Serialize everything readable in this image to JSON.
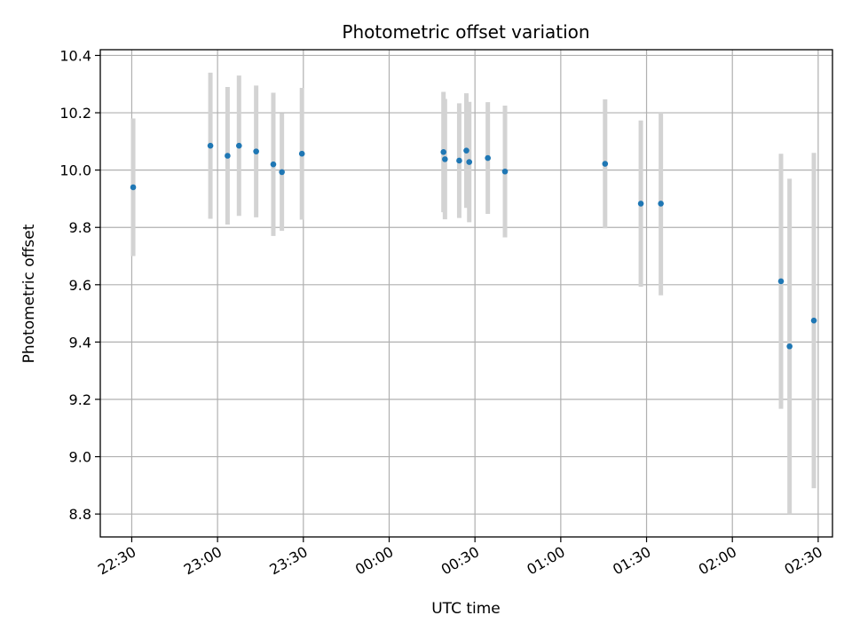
{
  "chart_data": {
    "type": "scatter",
    "title": "Photometric offset variation",
    "xlabel": "UTC time",
    "ylabel": "Photometric offset",
    "x_unit": "UTC time (HH:MM)",
    "xlim": [
      "22:19",
      "02:35"
    ],
    "ylim": [
      8.72,
      10.42
    ],
    "grid": true,
    "x_ticks": [
      "22:30",
      "23:00",
      "23:30",
      "00:00",
      "00:30",
      "01:00",
      "01:30",
      "02:00",
      "02:30"
    ],
    "y_ticks": [
      "8.8",
      "9.0",
      "9.2",
      "9.4",
      "9.6",
      "9.8",
      "10.0",
      "10.2",
      "10.4"
    ],
    "colors": {
      "marker": "#1f77b4",
      "errorbar": "#d3d3d3",
      "grid": "#b0b0b0"
    },
    "points": [
      {
        "t": "22:30:30",
        "y": 9.94,
        "err": 0.24
      },
      {
        "t": "22:57:30",
        "y": 10.085,
        "err": 0.255
      },
      {
        "t": "23:03:30",
        "y": 10.05,
        "err": 0.24
      },
      {
        "t": "23:07:30",
        "y": 10.085,
        "err": 0.245
      },
      {
        "t": "23:13:30",
        "y": 10.065,
        "err": 0.23
      },
      {
        "t": "23:19:30",
        "y": 10.02,
        "err": 0.25
      },
      {
        "t": "23:22:30",
        "y": 9.993,
        "err": 0.205
      },
      {
        "t": "23:29:30",
        "y": 10.057,
        "err": 0.23
      },
      {
        "t": "00:19:00",
        "y": 10.063,
        "err": 0.21
      },
      {
        "t": "00:19:30",
        "y": 10.038,
        "err": 0.21
      },
      {
        "t": "00:24:30",
        "y": 10.033,
        "err": 0.2
      },
      {
        "t": "00:27:00",
        "y": 10.068,
        "err": 0.2
      },
      {
        "t": "00:28:00",
        "y": 10.028,
        "err": 0.21
      },
      {
        "t": "00:34:30",
        "y": 10.042,
        "err": 0.195
      },
      {
        "t": "00:40:30",
        "y": 9.995,
        "err": 0.23
      },
      {
        "t": "01:15:30",
        "y": 10.022,
        "err": 0.225
      },
      {
        "t": "01:28:00",
        "y": 9.883,
        "err": 0.29
      },
      {
        "t": "01:35:00",
        "y": 9.883,
        "err": 0.32
      },
      {
        "t": "02:17:00",
        "y": 9.612,
        "err": 0.445
      },
      {
        "t": "02:20:00",
        "y": 9.385,
        "err": 0.585
      },
      {
        "t": "02:28:30",
        "y": 9.475,
        "err": 0.585
      }
    ]
  }
}
